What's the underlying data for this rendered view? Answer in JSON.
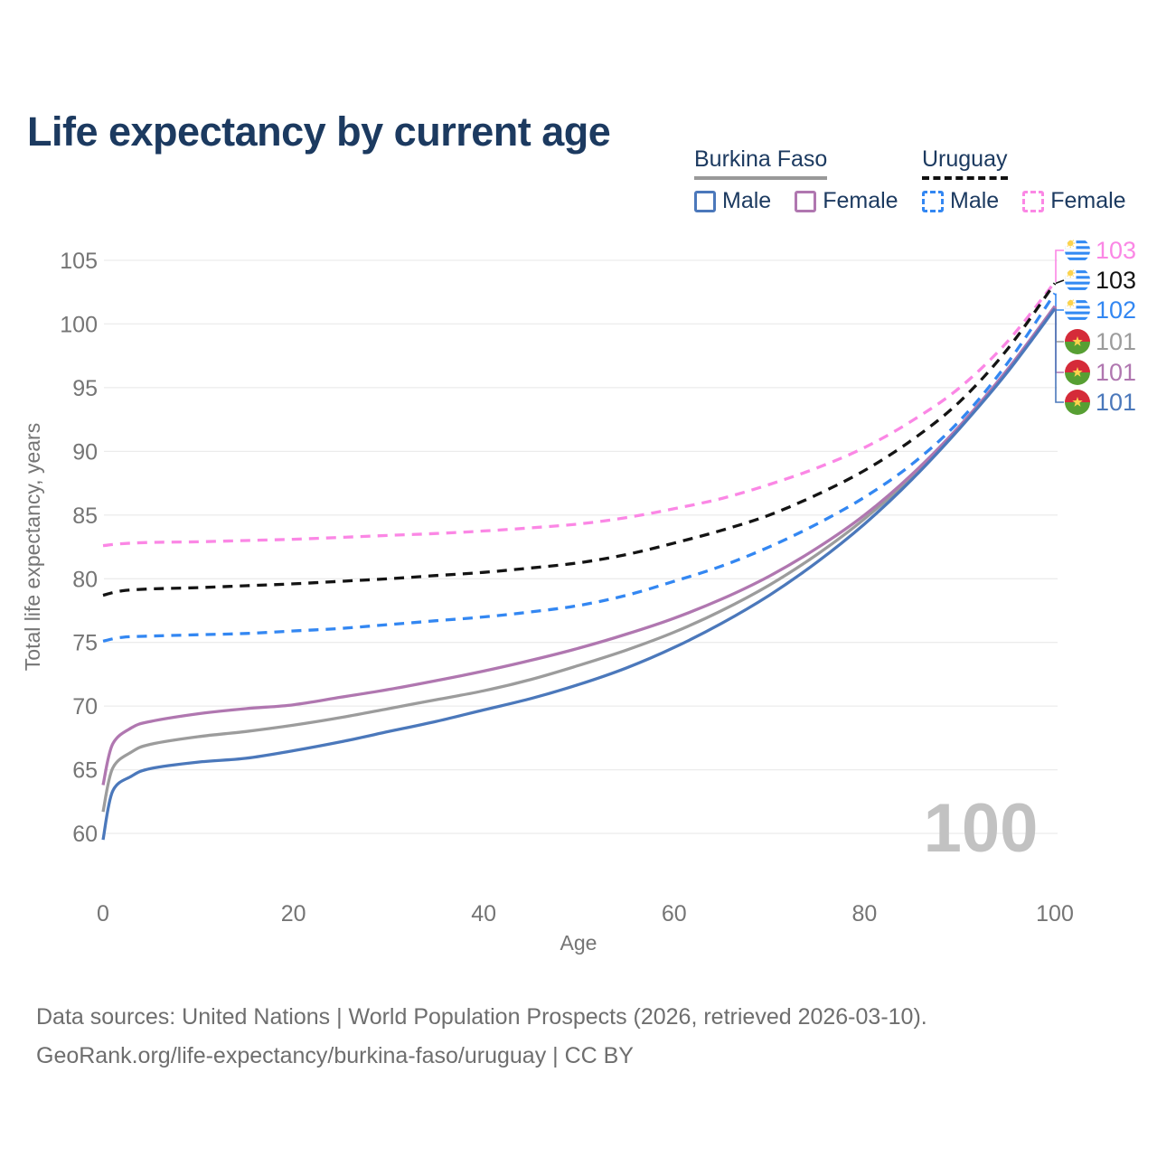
{
  "title": "Life expectancy by current age",
  "watermark": "100",
  "legend": {
    "groups": [
      {
        "country": "Burkina Faso",
        "line_style": "solid",
        "underline_color": "#999999",
        "items": [
          {
            "label": "Male",
            "color": "#4b78bb",
            "dashed": false
          },
          {
            "label": "Female",
            "color": "#b077b0",
            "dashed": false
          }
        ]
      },
      {
        "country": "Uruguay",
        "line_style": "dashed",
        "underline_color": "#111111",
        "items": [
          {
            "label": "Male",
            "color": "#3387f2",
            "dashed": true
          },
          {
            "label": "Female",
            "color": "#fb87e5",
            "dashed": true
          }
        ]
      }
    ]
  },
  "chart_data": {
    "type": "line",
    "title": "Life expectancy by current age",
    "xlabel": "Age",
    "ylabel": "Total life expectancy, years",
    "xlim": [
      0,
      100
    ],
    "ylim": [
      59,
      105.5
    ],
    "x_ticks": [
      0,
      20,
      40,
      60,
      80,
      100
    ],
    "y_ticks": [
      60,
      65,
      70,
      75,
      80,
      85,
      90,
      95,
      100,
      105
    ],
    "grid": "horizontal",
    "legend_position": "top-right",
    "series": [
      {
        "name": "Uruguay Female",
        "flag": "uruguay",
        "color": "#fb87e5",
        "dashed": true,
        "end_label": "103",
        "label_row": 0,
        "points": [
          [
            0,
            82.6
          ],
          [
            2,
            82.75
          ],
          [
            5,
            82.85
          ],
          [
            10,
            82.9
          ],
          [
            15,
            83.0
          ],
          [
            20,
            83.1
          ],
          [
            25,
            83.25
          ],
          [
            30,
            83.4
          ],
          [
            35,
            83.55
          ],
          [
            40,
            83.75
          ],
          [
            45,
            84.0
          ],
          [
            50,
            84.3
          ],
          [
            55,
            84.8
          ],
          [
            60,
            85.5
          ],
          [
            65,
            86.3
          ],
          [
            70,
            87.4
          ],
          [
            75,
            88.7
          ],
          [
            80,
            90.3
          ],
          [
            85,
            92.4
          ],
          [
            90,
            95.0
          ],
          [
            95,
            98.6
          ],
          [
            100,
            103.3
          ]
        ]
      },
      {
        "name": "Uruguay Both Sexes",
        "flag": "uruguay",
        "color": "#141414",
        "dashed": true,
        "end_label": "103",
        "label_row": 1,
        "points": [
          [
            0,
            78.7
          ],
          [
            2,
            79.05
          ],
          [
            5,
            79.2
          ],
          [
            10,
            79.3
          ],
          [
            15,
            79.45
          ],
          [
            20,
            79.6
          ],
          [
            25,
            79.8
          ],
          [
            30,
            80.0
          ],
          [
            35,
            80.25
          ],
          [
            40,
            80.5
          ],
          [
            45,
            80.85
          ],
          [
            50,
            81.25
          ],
          [
            55,
            81.9
          ],
          [
            60,
            82.8
          ],
          [
            65,
            83.8
          ],
          [
            70,
            85.0
          ],
          [
            75,
            86.6
          ],
          [
            80,
            88.5
          ],
          [
            85,
            90.9
          ],
          [
            90,
            93.9
          ],
          [
            95,
            98.0
          ],
          [
            100,
            103.2
          ]
        ]
      },
      {
        "name": "Uruguay Male",
        "flag": "uruguay",
        "color": "#3387f2",
        "dashed": true,
        "end_label": "102",
        "label_row": 2,
        "points": [
          [
            0,
            75.1
          ],
          [
            2,
            75.4
          ],
          [
            5,
            75.5
          ],
          [
            10,
            75.6
          ],
          [
            15,
            75.7
          ],
          [
            20,
            75.9
          ],
          [
            25,
            76.1
          ],
          [
            30,
            76.4
          ],
          [
            35,
            76.7
          ],
          [
            40,
            77.0
          ],
          [
            45,
            77.4
          ],
          [
            50,
            77.9
          ],
          [
            55,
            78.7
          ],
          [
            60,
            79.8
          ],
          [
            65,
            81.0
          ],
          [
            70,
            82.5
          ],
          [
            75,
            84.3
          ],
          [
            80,
            86.4
          ],
          [
            85,
            89.0
          ],
          [
            90,
            92.4
          ],
          [
            95,
            96.9
          ],
          [
            100,
            102.4
          ]
        ]
      },
      {
        "name": "Burkina Faso Both Sexes",
        "flag": "burkina-faso",
        "color": "#9c9c9c",
        "dashed": false,
        "end_label": "101",
        "label_row": 3,
        "points": [
          [
            0,
            61.7
          ],
          [
            1,
            65.1
          ],
          [
            3,
            66.4
          ],
          [
            5,
            67.0
          ],
          [
            10,
            67.6
          ],
          [
            15,
            68.0
          ],
          [
            20,
            68.5
          ],
          [
            25,
            69.1
          ],
          [
            30,
            69.8
          ],
          [
            35,
            70.5
          ],
          [
            40,
            71.2
          ],
          [
            45,
            72.1
          ],
          [
            50,
            73.2
          ],
          [
            55,
            74.4
          ],
          [
            60,
            75.8
          ],
          [
            65,
            77.5
          ],
          [
            70,
            79.5
          ],
          [
            75,
            81.9
          ],
          [
            80,
            84.7
          ],
          [
            85,
            88.0
          ],
          [
            90,
            91.9
          ],
          [
            95,
            96.3
          ],
          [
            100,
            101.3
          ]
        ]
      },
      {
        "name": "Burkina Faso Female",
        "flag": "burkina-faso",
        "color": "#b077b0",
        "dashed": false,
        "end_label": "101",
        "label_row": 4,
        "points": [
          [
            0,
            63.8
          ],
          [
            1,
            67.0
          ],
          [
            3,
            68.3
          ],
          [
            5,
            68.8
          ],
          [
            10,
            69.4
          ],
          [
            15,
            69.8
          ],
          [
            20,
            70.1
          ],
          [
            25,
            70.7
          ],
          [
            30,
            71.3
          ],
          [
            35,
            72.0
          ],
          [
            40,
            72.75
          ],
          [
            45,
            73.6
          ],
          [
            50,
            74.55
          ],
          [
            55,
            75.65
          ],
          [
            60,
            76.9
          ],
          [
            65,
            78.4
          ],
          [
            70,
            80.2
          ],
          [
            75,
            82.4
          ],
          [
            80,
            85.0
          ],
          [
            85,
            88.2
          ],
          [
            90,
            92.0
          ],
          [
            95,
            96.4
          ],
          [
            100,
            101.4
          ]
        ]
      },
      {
        "name": "Burkina Faso Male",
        "flag": "burkina-faso",
        "color": "#4b78bb",
        "dashed": false,
        "end_label": "101",
        "label_row": 5,
        "points": [
          [
            0,
            59.5
          ],
          [
            1,
            63.3
          ],
          [
            3,
            64.5
          ],
          [
            5,
            65.1
          ],
          [
            10,
            65.6
          ],
          [
            15,
            65.9
          ],
          [
            20,
            66.5
          ],
          [
            25,
            67.2
          ],
          [
            30,
            68.0
          ],
          [
            35,
            68.8
          ],
          [
            40,
            69.7
          ],
          [
            45,
            70.6
          ],
          [
            50,
            71.7
          ],
          [
            55,
            73.0
          ],
          [
            60,
            74.6
          ],
          [
            65,
            76.5
          ],
          [
            70,
            78.7
          ],
          [
            75,
            81.3
          ],
          [
            80,
            84.3
          ],
          [
            85,
            87.8
          ],
          [
            90,
            91.8
          ],
          [
            95,
            96.2
          ],
          [
            100,
            101.2
          ]
        ]
      }
    ]
  },
  "footer": {
    "line1": "Data sources: United Nations | World Population Prospects (2026, retrieved 2026-03-10).",
    "line2": "GeoRank.org/life-expectancy/burkina-faso/uruguay | CC BY"
  }
}
